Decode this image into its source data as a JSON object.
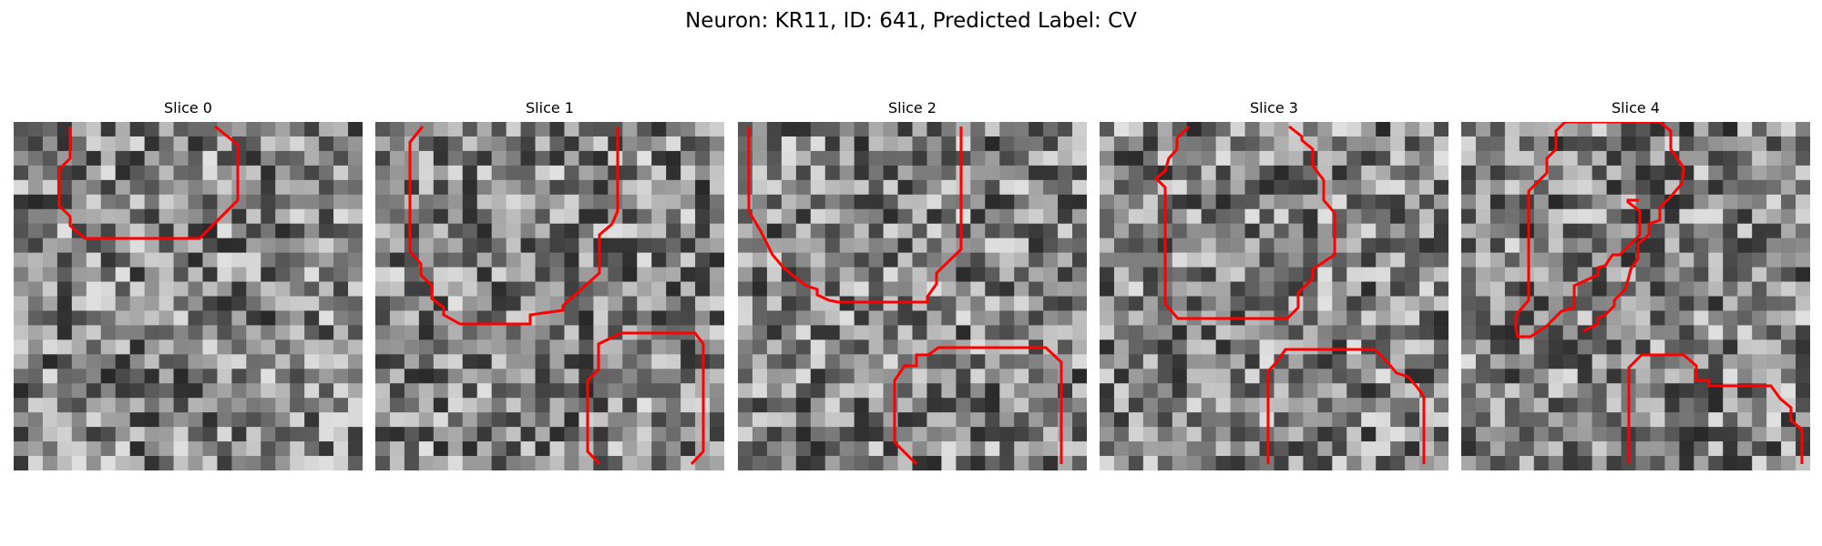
{
  "figure": {
    "title": "Neuron: KR11, ID: 641, Predicted Label: CV",
    "contour_color": "#ff0000",
    "panels": [
      {
        "title": "Slice 0",
        "seed": 11
      },
      {
        "title": "Slice 1",
        "seed": 23
      },
      {
        "title": "Slice 2",
        "seed": 37
      },
      {
        "title": "Slice 3",
        "seed": 41
      },
      {
        "title": "Slice 4",
        "seed": 59
      }
    ]
  }
}
